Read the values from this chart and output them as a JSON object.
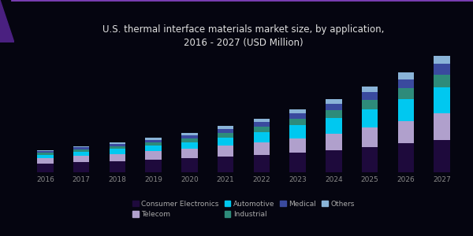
{
  "title": "U.S. thermal interface materials market size, by application,\n2016 - 2027 (USD Million)",
  "years": [
    "2016",
    "2017",
    "2018",
    "2019",
    "2020",
    "2021",
    "2022",
    "2023",
    "2024",
    "2025",
    "2026",
    "2027"
  ],
  "segments": [
    {
      "label": "Consumer Electronics",
      "color": "#1e0a3c",
      "values": [
        22,
        26,
        29,
        33,
        36,
        40,
        45,
        51,
        57,
        65,
        74,
        84
      ]
    },
    {
      "label": "Telecom",
      "color": "#b0a0cc",
      "values": [
        14,
        16,
        18,
        21,
        24,
        28,
        32,
        37,
        43,
        50,
        58,
        67
      ]
    },
    {
      "label": "Automotive",
      "color": "#00c8f0",
      "values": [
        9,
        11,
        13,
        15,
        18,
        22,
        27,
        33,
        40,
        48,
        57,
        68
      ]
    },
    {
      "label": "Industrial",
      "color": "#2e8b7a",
      "values": [
        5,
        6,
        7,
        8,
        10,
        12,
        14,
        17,
        20,
        23,
        27,
        32
      ]
    },
    {
      "label": "Medical",
      "color": "#3a4a9e",
      "values": [
        4,
        5,
        6,
        7,
        8,
        10,
        12,
        14,
        17,
        20,
        24,
        28
      ]
    },
    {
      "label": "Others",
      "color": "#8ab4d8",
      "values": [
        3,
        3,
        4,
        5,
        6,
        7,
        8,
        10,
        12,
        14,
        17,
        20
      ]
    }
  ],
  "background_color": "#050510",
  "plot_bg_color": "#050510",
  "title_color": "#e0e0e0",
  "title_fontsize": 8.5,
  "bar_width": 0.45,
  "legend_fontsize": 6.5,
  "legend_text_color": "#aaaaaa",
  "ylim": [
    0,
    310
  ],
  "accent_color": "#7b3fb5"
}
